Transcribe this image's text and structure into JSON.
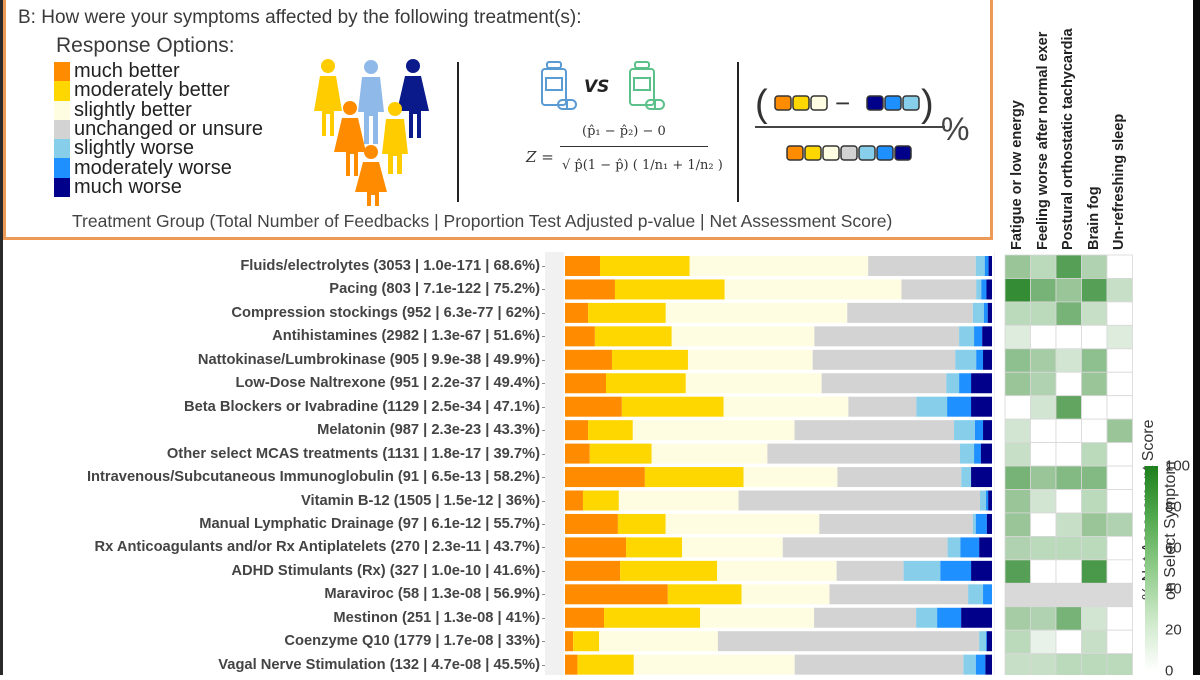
{
  "panel": {
    "question": "B: How were your symptoms affected by the following treatment(s):",
    "response_title": "Response Options:",
    "caption": "Treatment Group (Total Number of Feedbacks | Proportion Test Adjusted p-value | Net Assessment Score)",
    "vs_label": "VS",
    "formula": {
      "lhs": "Z =",
      "numerator": "(p̂₁ − p̂₂) − 0",
      "denominator": "√ p̂(1 − p̂) ( 1/n₁ + 1/n₂ )"
    },
    "percent_sign": "%",
    "minus_sign": "−",
    "icons": [
      "people-group-icon",
      "medicine-bottle-blue-icon",
      "medicine-bottle-green-icon"
    ]
  },
  "colors": {
    "much_better": "#ff8c00",
    "moderately_better": "#ffd700",
    "slightly_better": "#fffde1",
    "unchanged": "#d3d3d3",
    "slightly_worse": "#87ceeb",
    "moderately_worse": "#1e90ff",
    "much_worse": "#00008b",
    "panel_border": "#ec9a55",
    "heat_high": "#1d7f1d",
    "heat_na": "#d9d9d9"
  },
  "chart_data": [
    {
      "type": "bar",
      "orientation": "horizontal",
      "stacked": true,
      "title": "How were your symptoms affected by the following treatment(s)",
      "xlabel": "",
      "ylabel": "Treatment Group (Total Number of Feedbacks | Proportion Test Adjusted p-value | Net Assessment Score)",
      "xlim": [
        0,
        100
      ],
      "legend_position": "top-left",
      "legend": [
        "much better",
        "moderately better",
        "slightly better",
        "unchanged or unsure",
        "slightly worse",
        "moderately worse",
        "much worse"
      ],
      "categories": [
        "Fluids/electrolytes (3053 | 1.0e-171 | 68.6%)",
        "Pacing (803 | 7.1e-122 | 75.2%)",
        "Compression stockings (952 |  6.3e-77 | 62%)",
        "Antihistamines (2982 |  1.3e-67 | 51.6%)",
        "Nattokinase/Lumbrokinase (905 |  9.9e-38 | 49.9%)",
        "Low-Dose Naltrexone (951 |  2.2e-37 | 49.4%)",
        "Beta Blockers or Ivabradine (1129 |  2.5e-34 | 47.1%)",
        "Melatonin (987 |  2.3e-23 | 43.3%)",
        "Other select MCAS treatments (1131 |  1.8e-17 | 39.7%)",
        "Intravenous/Subcutaneous Immunoglobulin (91 |  6.5e-13 | 58.2%)",
        "Vitamin B-12 (1505 |  1.5e-12 | 36%)",
        "Manual Lymphatic Drainage (97 |  6.1e-12 | 55.7%)",
        "Rx Anticoagulants and/or Rx Antiplatelets (270 |  2.3e-11 | 43.7%)",
        "ADHD Stimulants (Rx) (327 |  1.0e-10 | 41.6%)",
        "Maraviroc (58 |  1.3e-08 | 56.9%)",
        "Mestinon (251 |  1.3e-08 | 41%)",
        "Coenzyme Q10 (1779 |  1.7e-08 | 33%)",
        "Vagal Nerve Stimulation (132 |  4.7e-08 | 45.5%)"
      ],
      "series": [
        {
          "name": "much better",
          "values": [
            8.2,
            11.7,
            5.4,
            7.0,
            11.0,
            9.6,
            13.3,
            5.4,
            5.8,
            18.7,
            4.2,
            12.4,
            14.3,
            12.9,
            24.1,
            9.1,
            1.9,
            3.0
          ]
        },
        {
          "name": "moderately better",
          "values": [
            21.0,
            25.7,
            18.2,
            18.0,
            17.8,
            18.7,
            23.8,
            10.5,
            14.5,
            23.1,
            8.4,
            11.2,
            13.1,
            22.7,
            17.3,
            22.4,
            6.1,
            13.6
          ]
        },
        {
          "name": "slightly better",
          "values": [
            41.8,
            41.4,
            42.5,
            33.4,
            29.2,
            31.8,
            29.2,
            37.9,
            27.1,
            22.0,
            28.0,
            36.0,
            23.6,
            28.0,
            20.6,
            26.6,
            27.8,
            38.8
          ]
        },
        {
          "name": "unchanged or unsure",
          "values": [
            25.2,
            17.5,
            29.4,
            33.9,
            33.4,
            29.2,
            15.9,
            37.4,
            45.1,
            29.0,
            56.5,
            36.0,
            38.6,
            15.7,
            32.5,
            23.8,
            61.2,
            40.7
          ]
        },
        {
          "name": "slightly worse",
          "values": [
            2.1,
            1.2,
            2.6,
            3.5,
            4.9,
            3.0,
            7.2,
            4.9,
            3.3,
            2.3,
            1.4,
            0.7,
            3.0,
            8.6,
            3.5,
            4.9,
            1.6,
            3.0
          ]
        },
        {
          "name": "moderately worse",
          "values": [
            0.9,
            1.2,
            0.9,
            1.9,
            1.6,
            2.8,
            5.6,
            1.9,
            1.6,
            0.0,
            0.5,
            2.6,
            4.4,
            7.2,
            2.1,
            5.6,
            0.2,
            2.3
          ]
        },
        {
          "name": "much worse",
          "values": [
            0.8,
            1.3,
            1.0,
            2.3,
            2.1,
            4.9,
            4.9,
            2.1,
            2.6,
            4.9,
            0.9,
            1.2,
            3.0,
            4.9,
            0.0,
            7.2,
            1.2,
            1.6
          ]
        }
      ]
    },
    {
      "type": "heatmap",
      "title": "% Net Assessment Score on Select Symptom",
      "colorbar_label": "% Net Assessment Score\non Select Symptom",
      "colorbar_range": [
        0,
        100
      ],
      "colorbar_ticks": [
        "100",
        "80",
        "60",
        "40",
        "20",
        "0"
      ],
      "colorbar_tick_values": [
        100,
        80,
        60,
        40,
        20,
        0
      ],
      "x": [
        "Fatigue or low energy",
        "Feeling worse after normal exer",
        "Postural orthostatic tachycardia",
        "Brain fog",
        "Un-refreshing sleep"
      ],
      "y_same_as_bar_categories": true,
      "values": [
        [
          45,
          30,
          75,
          35,
          0
        ],
        [
          90,
          60,
          45,
          75,
          25
        ],
        [
          30,
          30,
          60,
          25,
          0
        ],
        [
          15,
          0,
          0,
          0,
          15
        ],
        [
          50,
          40,
          20,
          50,
          0
        ],
        [
          45,
          35,
          0,
          45,
          0
        ],
        [
          0,
          20,
          70,
          0,
          0
        ],
        [
          20,
          0,
          0,
          0,
          45
        ],
        [
          25,
          0,
          0,
          30,
          0
        ],
        [
          60,
          45,
          55,
          55,
          0
        ],
        [
          45,
          20,
          0,
          30,
          0
        ],
        [
          45,
          0,
          25,
          45,
          35
        ],
        [
          35,
          30,
          30,
          30,
          0
        ],
        [
          75,
          0,
          0,
          80,
          0
        ],
        [
          null,
          null,
          null,
          null,
          null
        ],
        [
          40,
          35,
          60,
          20,
          0
        ],
        [
          30,
          10,
          0,
          25,
          0
        ],
        [
          25,
          25,
          30,
          30,
          30
        ]
      ]
    }
  ]
}
